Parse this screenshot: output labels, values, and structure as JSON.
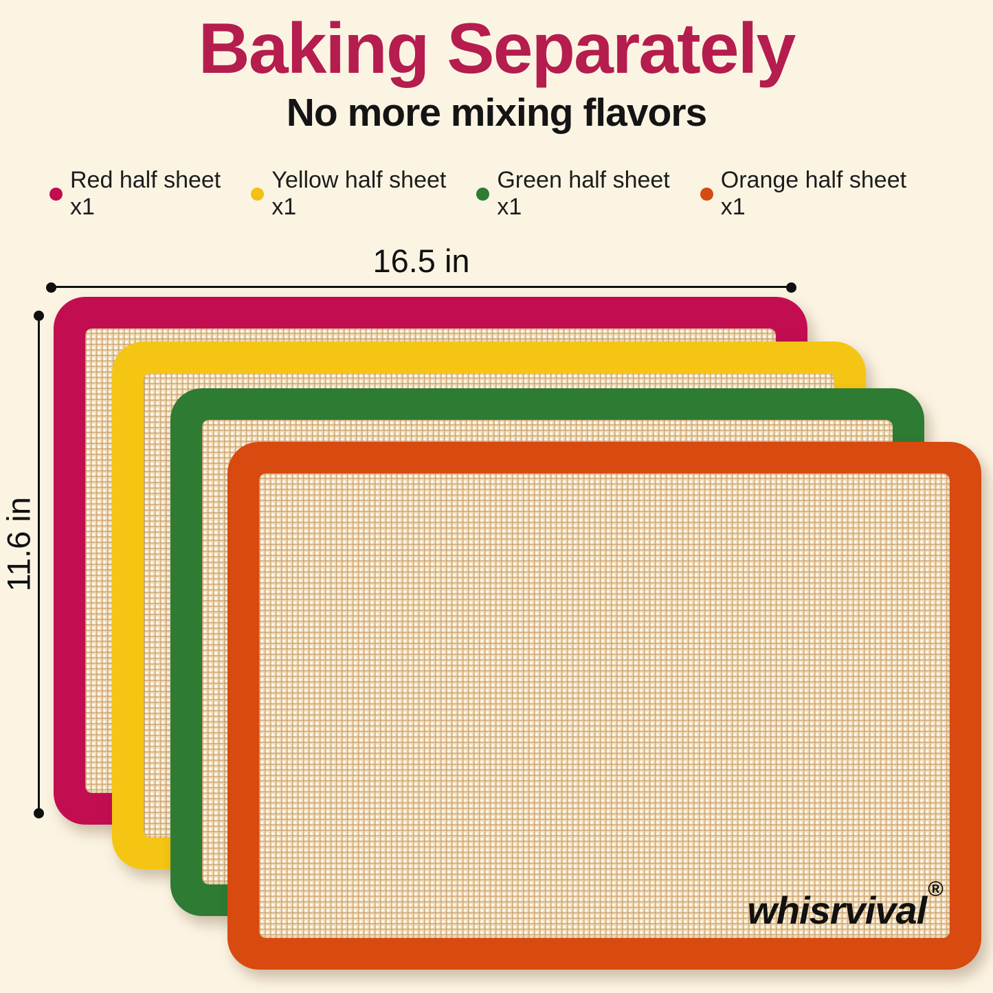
{
  "page": {
    "background_color": "#FCF4E3"
  },
  "header": {
    "title": "Baking Separately",
    "title_color": "#B41D4E",
    "subtitle": "No more mixing flavors"
  },
  "legend": {
    "items": [
      {
        "label": "Red half sheet x1",
        "color": "#C30D51"
      },
      {
        "label": "Yellow half sheet x1",
        "color": "#F2C114"
      },
      {
        "label": "Green half sheet x1",
        "color": "#2E7B33"
      },
      {
        "label": "Orange half sheet x1",
        "color": "#D54A12"
      }
    ]
  },
  "dimensions": {
    "width_label": "16.5 in",
    "height_label": "11.6 in"
  },
  "mats": [
    {
      "name": "red half sheet mat",
      "border_color": "#C30D51"
    },
    {
      "name": "yellow half sheet mat",
      "border_color": "#F5C513"
    },
    {
      "name": "green half sheet mat",
      "border_color": "#2E7B33"
    },
    {
      "name": "orange half sheet mat",
      "border_color": "#D84A10"
    }
  ],
  "brand": {
    "name": "whisrvival",
    "registered_mark": "®"
  }
}
